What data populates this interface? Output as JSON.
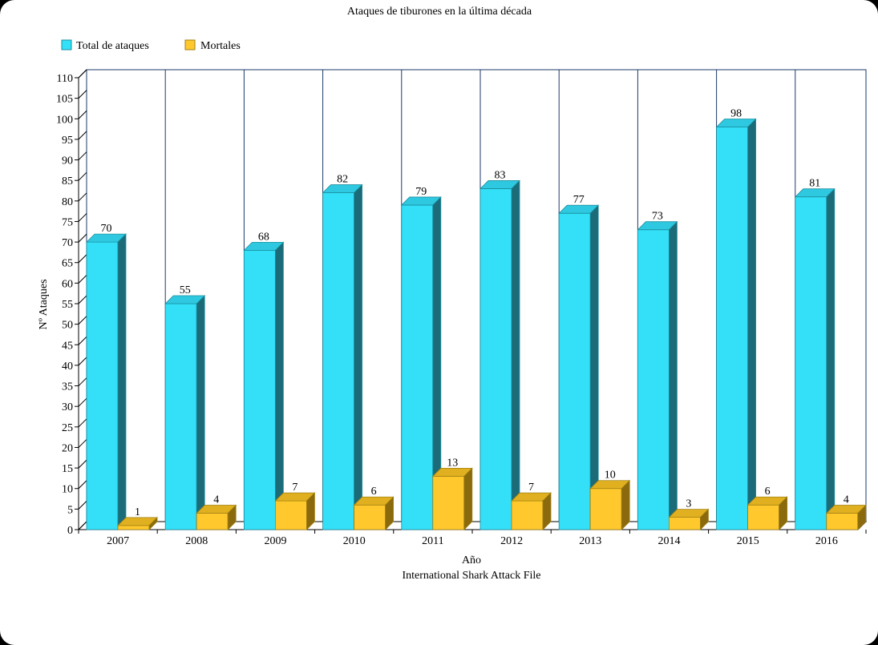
{
  "chart_data": {
    "type": "bar",
    "title": "Ataques de tiburones en la última década",
    "xlabel": "Año",
    "subtitle": "International Shark Attack File",
    "ylabel": "Nº Ataques",
    "ylim": [
      0,
      110
    ],
    "ytick_step": 5,
    "grid": "vertical separators between categories",
    "legend_position": "top-left",
    "categories": [
      "2007",
      "2008",
      "2009",
      "2010",
      "2011",
      "2012",
      "2013",
      "2014",
      "2015",
      "2016"
    ],
    "series": [
      {
        "name": "Total de ataques",
        "color": "#33e0f8",
        "values": [
          70,
          55,
          68,
          82,
          79,
          83,
          77,
          73,
          98,
          81
        ]
      },
      {
        "name": "Mortales",
        "color": "#ffc92e",
        "values": [
          1,
          4,
          7,
          6,
          13,
          7,
          10,
          3,
          6,
          4
        ]
      }
    ]
  }
}
